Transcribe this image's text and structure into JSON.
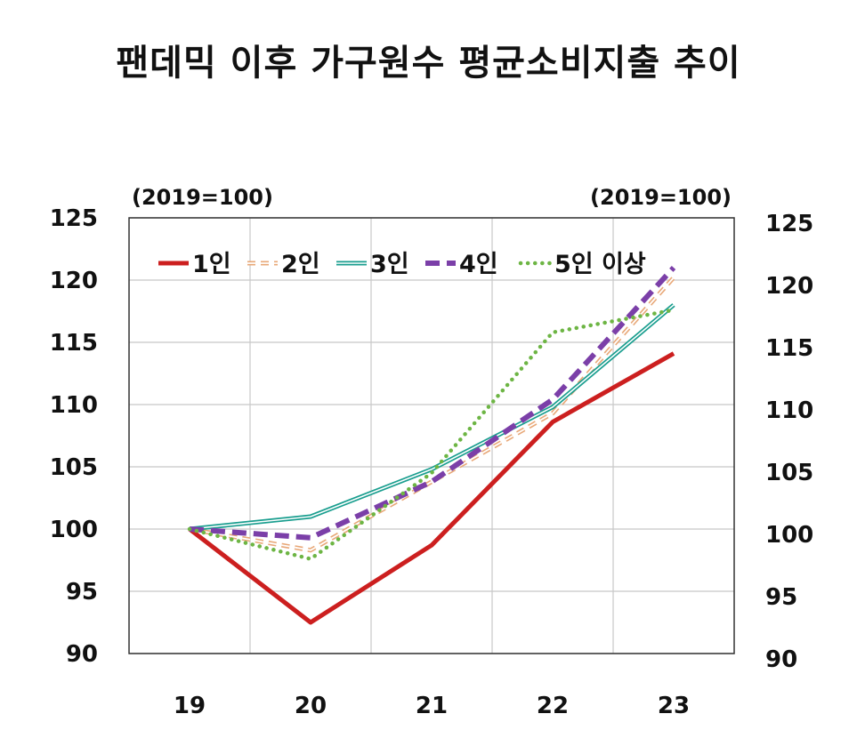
{
  "title": "팬데믹 이후 가구원수 평균소비지출 추이",
  "chart_data": {
    "type": "line",
    "title": "팬데믹 이후 가구원수 평균소비지출 추이",
    "unit_left": "(2019=100)",
    "unit_right": "(2019=100)",
    "categories": [
      "19",
      "20",
      "21",
      "22",
      "23"
    ],
    "ylim": [
      90,
      125
    ],
    "yticks": [
      "90",
      "95",
      "100",
      "105",
      "110",
      "115",
      "120",
      "125"
    ],
    "grid": true,
    "legend_position": "top-left inside",
    "series": [
      {
        "name": "1인",
        "values": [
          100,
          92.5,
          98.7,
          108.6,
          114.1
        ],
        "color": "#cc1f1f",
        "style": "solid"
      },
      {
        "name": "2인",
        "values": [
          100,
          98.3,
          103.8,
          109.3,
          120.2
        ],
        "color": "#e8a878",
        "style": "dash-hollow"
      },
      {
        "name": "3인",
        "values": [
          100,
          101.0,
          104.8,
          109.8,
          118.0
        ],
        "color": "#1a9e8f",
        "style": "double"
      },
      {
        "name": "4인",
        "values": [
          100,
          99.3,
          103.8,
          110.4,
          121.0
        ],
        "color": "#7b3fa8",
        "style": "dash"
      },
      {
        "name": "5인 이상",
        "values": [
          100,
          97.6,
          104.5,
          115.8,
          117.6
        ],
        "color": "#6db544",
        "style": "dot"
      }
    ]
  }
}
